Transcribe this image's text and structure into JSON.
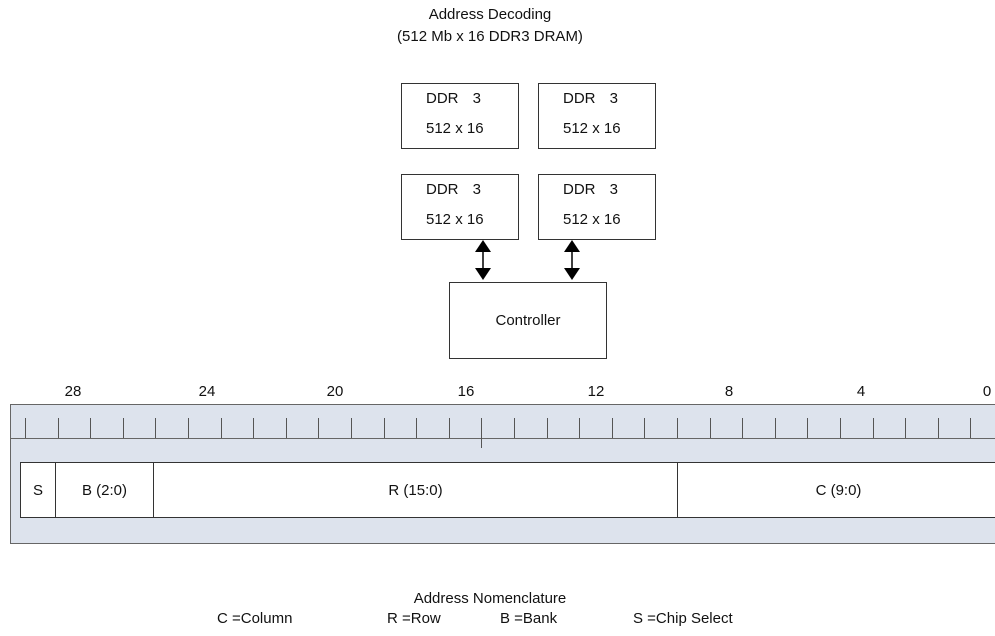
{
  "title": {
    "line1": "Address Decoding",
    "line2": "(512 Mb x 16 DDR3 DRAM)"
  },
  "chips": [
    {
      "line1": "DDR 3",
      "line2": "512 x 16"
    },
    {
      "line1": "DDR 3",
      "line2": "512 x 16"
    },
    {
      "line1": "DDR 3",
      "line2": "512 x 16"
    },
    {
      "line1": "DDR 3",
      "line2": "512 x 16"
    }
  ],
  "controller": {
    "label": "Controller"
  },
  "ruler": {
    "labels": [
      "28",
      "24",
      "20",
      "16",
      "12",
      "8",
      "4",
      "0"
    ]
  },
  "fields": {
    "s": "S",
    "b": "B (2:0)",
    "r": "R (15:0)",
    "c": "C (9:0)"
  },
  "legend": {
    "title": "Address Nomenclature",
    "items": [
      "C =Column",
      "R =Row",
      "B =Bank",
      "S =Chip Select"
    ]
  }
}
